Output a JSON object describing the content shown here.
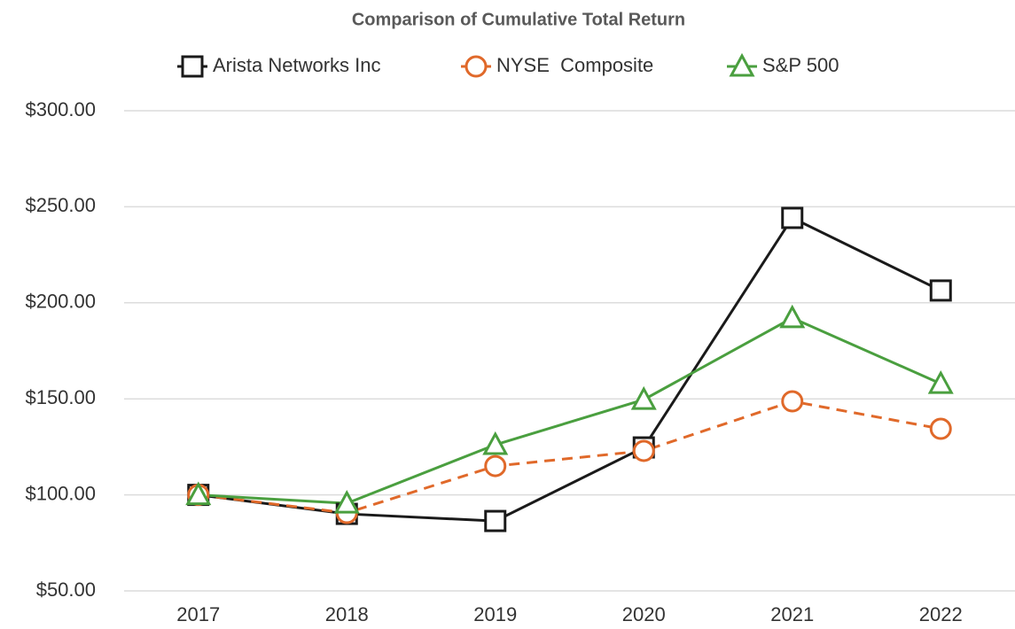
{
  "chart_data": {
    "type": "line",
    "title": "Comparison of Cumulative Total Return",
    "categories": [
      "2017",
      "2018",
      "2019",
      "2020",
      "2021",
      "2022"
    ],
    "series": [
      {
        "name": "Arista Networks Inc",
        "color": "#1a1a1a",
        "marker": "square",
        "dash": "solid",
        "values": [
          100,
          90.1,
          86.4,
          124.7,
          244.2,
          206.4
        ]
      },
      {
        "name": "NYSE  Composite",
        "color": "#e0692a",
        "marker": "circle",
        "dash": "dashed",
        "values": [
          100,
          90.6,
          115.0,
          122.9,
          148.7,
          134.4
        ]
      },
      {
        "name": "S&P 500",
        "color": "#4a9f3f",
        "marker": "triangle",
        "dash": "solid",
        "values": [
          100,
          95.6,
          126.1,
          149.6,
          192.1,
          157.9
        ]
      }
    ],
    "ylim": [
      50,
      300
    ],
    "yticks": [
      {
        "value": 50,
        "label": "$50.00"
      },
      {
        "value": 100,
        "label": "$100.00"
      },
      {
        "value": 150,
        "label": "$150.00"
      },
      {
        "value": 200,
        "label": "$200.00"
      },
      {
        "value": 250,
        "label": "$250.00"
      },
      {
        "value": 300,
        "label": "$300.00"
      }
    ],
    "grid": true,
    "legend": "top"
  }
}
